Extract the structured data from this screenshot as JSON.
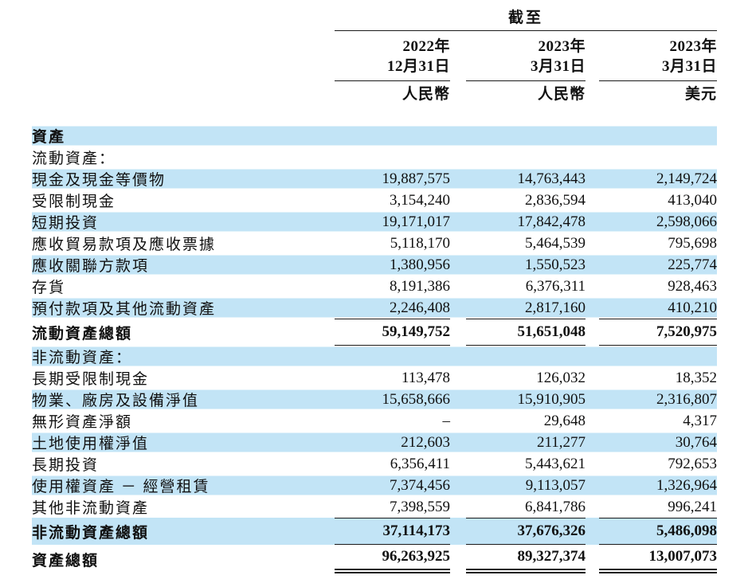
{
  "header": {
    "as_of_label": "截至",
    "columns": [
      {
        "year": "2022年",
        "date": "12月31日",
        "currency": "人民幣"
      },
      {
        "year": "2023年",
        "date": "3月31日",
        "currency": "人民幣"
      },
      {
        "year": "2023年",
        "date": "3月31日",
        "currency": "美元"
      }
    ]
  },
  "colors": {
    "row_highlight": "#c2e4f6",
    "rule": "#1a1a1a",
    "text": "#111111"
  },
  "table": {
    "rows": [
      {
        "label": "資產",
        "style": "section",
        "shaded": true
      },
      {
        "label": "流動資產：",
        "style": "group",
        "shaded": false
      },
      {
        "label": "現金及現金等價物",
        "style": "item",
        "shaded": true,
        "values": [
          "19,887,575",
          "14,763,443",
          "2,149,724"
        ]
      },
      {
        "label": "受限制現金",
        "style": "item",
        "shaded": false,
        "values": [
          "3,154,240",
          "2,836,594",
          "413,040"
        ]
      },
      {
        "label": "短期投資",
        "style": "item",
        "shaded": true,
        "values": [
          "19,171,017",
          "17,842,478",
          "2,598,066"
        ]
      },
      {
        "label": "應收貿易款項及應收票據",
        "style": "item",
        "shaded": false,
        "values": [
          "5,118,170",
          "5,464,539",
          "795,698"
        ]
      },
      {
        "label": "應收關聯方款項",
        "style": "item",
        "shaded": true,
        "values": [
          "1,380,956",
          "1,550,523",
          "225,774"
        ]
      },
      {
        "label": "存貨",
        "style": "item",
        "shaded": false,
        "values": [
          "8,191,386",
          "6,376,311",
          "928,463"
        ]
      },
      {
        "label": "預付款項及其他流動資產",
        "style": "item",
        "shaded": true,
        "values": [
          "2,246,408",
          "2,817,160",
          "410,210"
        ]
      },
      {
        "label": "流動資產總額",
        "style": "subtotal",
        "shaded": false,
        "values": [
          "59,149,752",
          "51,651,048",
          "7,520,975"
        ]
      },
      {
        "label": "非流動資產：",
        "style": "group",
        "shaded": true
      },
      {
        "label": "長期受限制現金",
        "style": "item",
        "shaded": false,
        "values": [
          "113,478",
          "126,032",
          "18,352"
        ]
      },
      {
        "label": "物業、廠房及設備淨值",
        "style": "item",
        "shaded": true,
        "values": [
          "15,658,666",
          "15,910,905",
          "2,316,807"
        ]
      },
      {
        "label": "無形資產淨額",
        "style": "item",
        "shaded": false,
        "values": [
          "–",
          "29,648",
          "4,317"
        ]
      },
      {
        "label": "土地使用權淨值",
        "style": "item",
        "shaded": true,
        "values": [
          "212,603",
          "211,277",
          "30,764"
        ]
      },
      {
        "label": "長期投資",
        "style": "item",
        "shaded": false,
        "values": [
          "6,356,411",
          "5,443,621",
          "792,653"
        ]
      },
      {
        "label": "使用權資產 － 經營租賃",
        "style": "item",
        "shaded": true,
        "values": [
          "7,374,456",
          "9,113,057",
          "1,326,964"
        ]
      },
      {
        "label": "其他非流動資產",
        "style": "item",
        "shaded": false,
        "values": [
          "7,398,559",
          "6,841,786",
          "996,241"
        ]
      },
      {
        "label": "非流動資產總額",
        "style": "subtotal",
        "shaded": true,
        "values": [
          "37,114,173",
          "37,676,326",
          "5,486,098"
        ]
      },
      {
        "label": "資產總額",
        "style": "grandtotal",
        "shaded": false,
        "values": [
          "96,263,925",
          "89,327,374",
          "13,007,073"
        ]
      }
    ]
  }
}
